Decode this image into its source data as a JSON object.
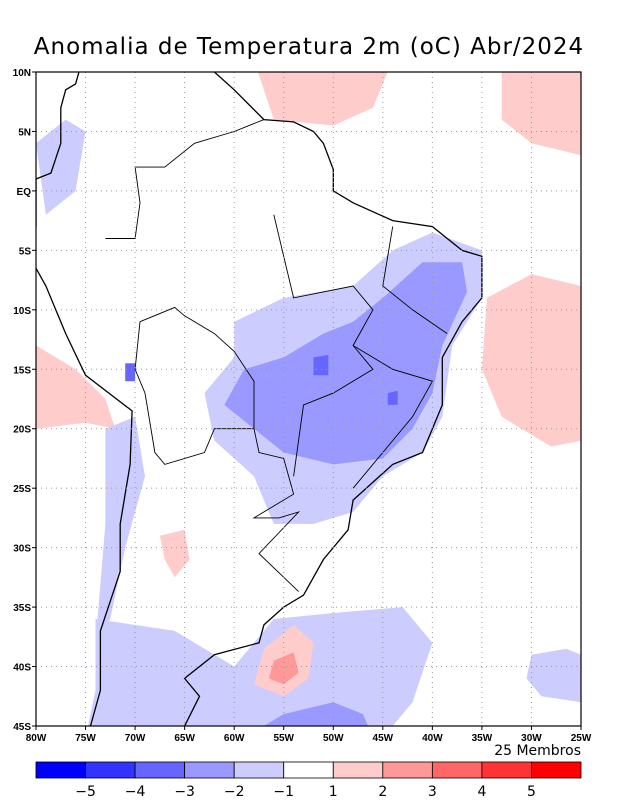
{
  "title": "Anomalia de Temperatura 2m (oC) Abr/2024",
  "members_label": "25 Membros",
  "lat_labels": [
    "10N",
    "5N",
    "EQ",
    "5S",
    "10S",
    "15S",
    "20S",
    "25S",
    "30S",
    "35S",
    "40S",
    "45S"
  ],
  "lon_labels": [
    "80W",
    "75W",
    "70W",
    "65W",
    "60W",
    "55W",
    "50W",
    "45W",
    "40W",
    "35W",
    "30W",
    "25W"
  ],
  "colorbar": {
    "colors": [
      "#0000ff",
      "#3333ff",
      "#6666ff",
      "#9999ff",
      "#ccccff",
      "#ffffff",
      "#ffcccc",
      "#ff9999",
      "#ff6666",
      "#ff3333",
      "#ff0000"
    ],
    "labels": [
      "-5",
      "-4",
      "-3",
      "-2",
      "-1",
      "1",
      "2",
      "3",
      "4",
      "5"
    ]
  }
}
